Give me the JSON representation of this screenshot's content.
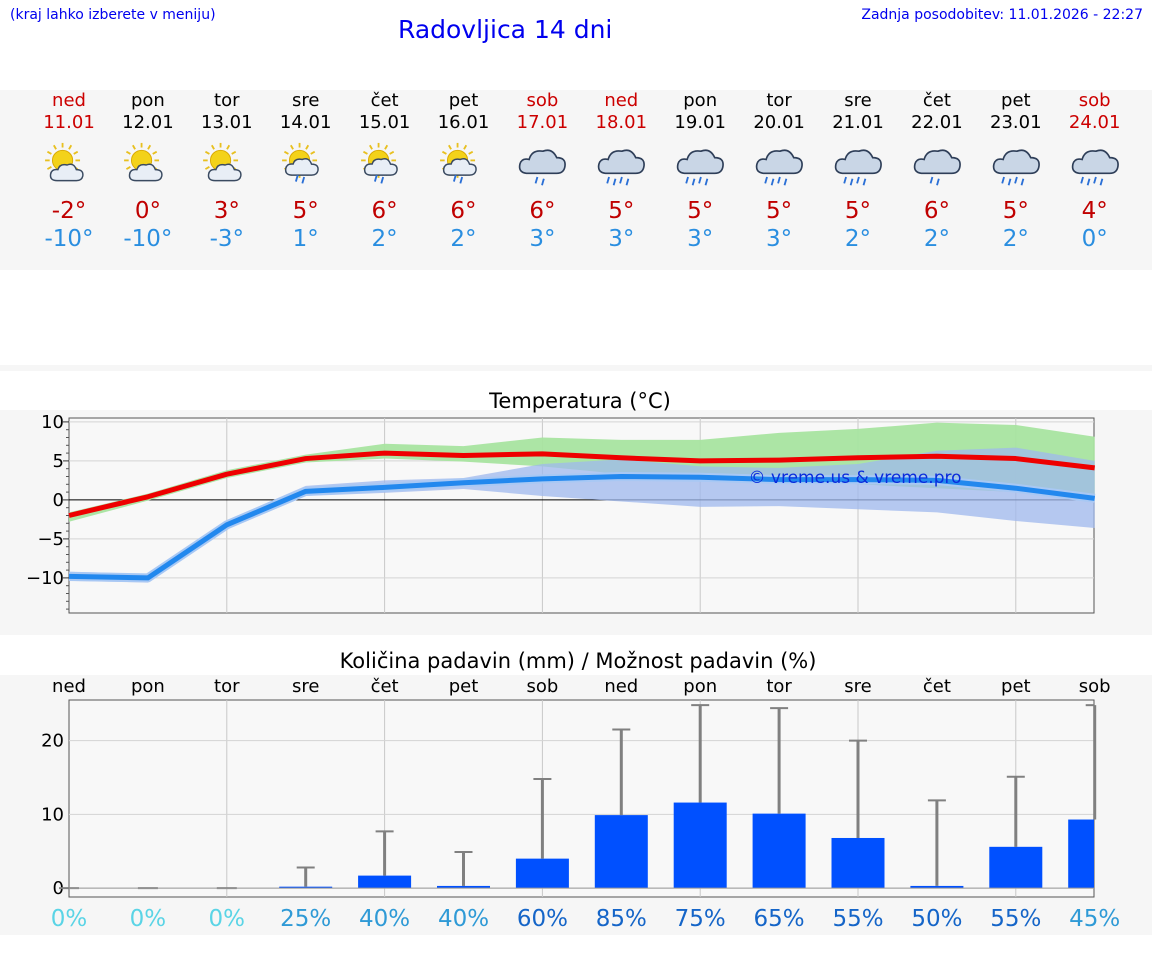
{
  "header": {
    "hint": "(kraj lahko izberete v meniju)",
    "title": "Radovljica 14 dni",
    "updated": "Zadnja posodobitev: 11.01.2026 - 22:27"
  },
  "forecast": [
    {
      "day": "ned",
      "date": "11.01",
      "icon": "sun-cloud-icon",
      "tmax": "-2°",
      "tmin": "-10°",
      "weekend": true
    },
    {
      "day": "pon",
      "date": "12.01",
      "icon": "sun-cloud-icon",
      "tmax": "0°",
      "tmin": "-10°",
      "weekend": false
    },
    {
      "day": "tor",
      "date": "13.01",
      "icon": "sun-cloud-icon",
      "tmax": "3°",
      "tmin": "-3°",
      "weekend": false
    },
    {
      "day": "sre",
      "date": "14.01",
      "icon": "sun-cloud-rain-icon",
      "tmax": "5°",
      "tmin": "1°",
      "weekend": false
    },
    {
      "day": "čet",
      "date": "15.01",
      "icon": "sun-cloud-rain-icon",
      "tmax": "6°",
      "tmin": "2°",
      "weekend": false
    },
    {
      "day": "pet",
      "date": "16.01",
      "icon": "sun-cloud-rain-icon",
      "tmax": "6°",
      "tmin": "2°",
      "weekend": false
    },
    {
      "day": "sob",
      "date": "17.01",
      "icon": "cloud-rain-icon",
      "tmax": "6°",
      "tmin": "3°",
      "weekend": true
    },
    {
      "day": "ned",
      "date": "18.01",
      "icon": "cloud-heavy-rain-icon",
      "tmax": "5°",
      "tmin": "3°",
      "weekend": true
    },
    {
      "day": "pon",
      "date": "19.01",
      "icon": "cloud-heavy-rain-icon",
      "tmax": "5°",
      "tmin": "3°",
      "weekend": false
    },
    {
      "day": "tor",
      "date": "20.01",
      "icon": "cloud-heavy-rain-icon",
      "tmax": "5°",
      "tmin": "3°",
      "weekend": false
    },
    {
      "day": "sre",
      "date": "21.01",
      "icon": "cloud-heavy-rain-icon",
      "tmax": "5°",
      "tmin": "2°",
      "weekend": false
    },
    {
      "day": "čet",
      "date": "22.01",
      "icon": "cloud-rain-icon",
      "tmax": "6°",
      "tmin": "2°",
      "weekend": false
    },
    {
      "day": "pet",
      "date": "23.01",
      "icon": "cloud-heavy-rain-icon",
      "tmax": "5°",
      "tmin": "2°",
      "weekend": false
    },
    {
      "day": "sob",
      "date": "24.01",
      "icon": "cloud-heavy-rain-icon",
      "tmax": "4°",
      "tmin": "0°",
      "weekend": true
    }
  ],
  "colors": {
    "max_line": "#ee0000",
    "min_line": "#2288ee",
    "max_band": "#a8e4a0",
    "min_band": "#9fb8ee",
    "overlap": "#78bea8",
    "bar": "#0050ff",
    "error": "#808080",
    "weekend": "#cc0000",
    "max_text": "#c00000",
    "min_text": "#2a8ee0"
  },
  "chart_data": [
    {
      "type": "line",
      "title": "Temperatura (°C)",
      "ylim": [
        -14.5,
        10.5
      ],
      "yticks": [
        "10",
        "5",
        "0",
        "−5",
        "−10"
      ],
      "ytick_values": [
        10,
        5,
        0,
        -5,
        -10
      ],
      "watermark": "© vreme.us & vreme.pro",
      "x": [
        0,
        1,
        2,
        3,
        4,
        5,
        6,
        7,
        8,
        9,
        10,
        11,
        12,
        13
      ],
      "series": [
        {
          "name": "max",
          "values": [
            -2,
            0.4,
            3.3,
            5.3,
            6.0,
            5.7,
            5.9,
            5.4,
            5.0,
            5.1,
            5.4,
            5.6,
            5.3,
            4.1
          ],
          "band_low": [
            -2.8,
            -0.1,
            2.8,
            4.8,
            5.3,
            4.9,
            4.3,
            3.3,
            2.5,
            2.4,
            2.0,
            1.5,
            1.0,
            0.7
          ],
          "band_high": [
            -1.6,
            0.8,
            3.8,
            5.8,
            7.2,
            6.9,
            8.0,
            7.7,
            7.7,
            8.6,
            9.1,
            9.9,
            9.6,
            8.1
          ]
        },
        {
          "name": "min",
          "values": [
            -9.8,
            -10.0,
            -3.2,
            1.1,
            1.6,
            2.2,
            2.7,
            3.0,
            2.9,
            2.6,
            2.6,
            2.5,
            1.5,
            0.2
          ],
          "band_low": [
            -10.4,
            -10.6,
            -3.8,
            0.5,
            0.9,
            1.4,
            0.5,
            -0.2,
            -0.9,
            -0.8,
            -1.2,
            -1.6,
            -2.7,
            -3.6
          ],
          "band_high": [
            -9.2,
            -9.5,
            -2.6,
            1.8,
            2.5,
            2.8,
            4.6,
            5.2,
            4.3,
            4.1,
            4.6,
            6.3,
            6.7,
            5.0
          ]
        }
      ]
    },
    {
      "type": "bar",
      "title": "Količina padavin (mm) / Možnost padavin (%)",
      "ylim": [
        -1.2,
        25.5
      ],
      "yticks": [
        "20",
        "10",
        "0"
      ],
      "ytick_values": [
        20,
        10,
        0
      ],
      "categories": [
        "ned",
        "pon",
        "tor",
        "sre",
        "čet",
        "pet",
        "sob",
        "ned",
        "pon",
        "tor",
        "sre",
        "čet",
        "pet",
        "sob"
      ],
      "values": [
        0,
        0,
        0,
        0.2,
        1.7,
        0.3,
        4.0,
        9.9,
        11.6,
        10.1,
        6.8,
        0.3,
        5.6,
        9.3
      ],
      "error_high": [
        0,
        0,
        0,
        2.8,
        7.7,
        4.9,
        14.8,
        21.5,
        24.8,
        24.4,
        20.0,
        11.9,
        15.1,
        24.8
      ],
      "probability": [
        "0%",
        "0%",
        "0%",
        "25%",
        "40%",
        "40%",
        "60%",
        "85%",
        "75%",
        "65%",
        "55%",
        "50%",
        "55%",
        "45%"
      ],
      "probability_colors": [
        "#5ad4e6",
        "#5ad4e6",
        "#5ad4e6",
        "#2f9ad6",
        "#2f9ad6",
        "#2f9ad6",
        "#1565c8",
        "#1565c8",
        "#1565c8",
        "#1565c8",
        "#1565c8",
        "#1565c8",
        "#1565c8",
        "#2f9ad6"
      ]
    }
  ]
}
